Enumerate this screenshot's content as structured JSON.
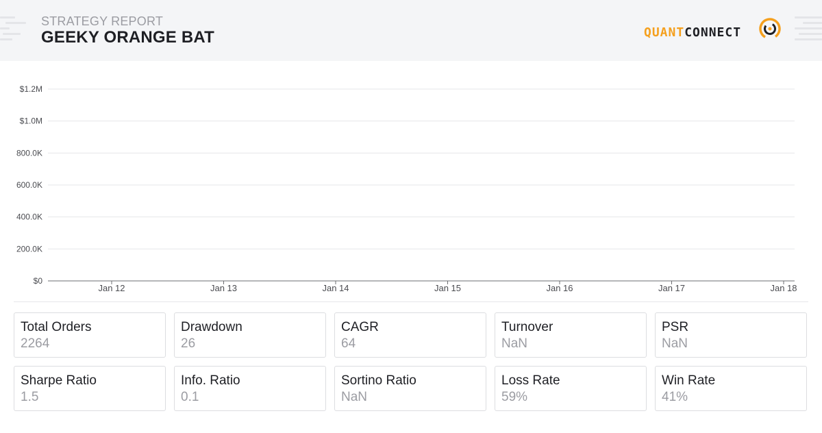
{
  "header": {
    "subtitle": "STRATEGY REPORT",
    "title": "GEEKY ORANGE BAT",
    "logo": {
      "quant": "QUANT",
      "connect": "CONNECT",
      "accent": "#f5a01e"
    }
  },
  "chart_data": {
    "type": "line",
    "title": "",
    "xlabel": "",
    "ylabel": "",
    "x_ticks": [
      "Jan 12",
      "Jan 13",
      "Jan 14",
      "Jan 15",
      "Jan 16",
      "Jan 17",
      "Jan 18"
    ],
    "y_ticks": [
      "$0",
      "200.0K",
      "400.0K",
      "600.0K",
      "800.0K",
      "$1.0M",
      "$1.2M"
    ],
    "ylim": [
      0,
      1200000
    ],
    "series": [],
    "grid": true
  },
  "stats": [
    {
      "label": "Total Orders",
      "value": "2264"
    },
    {
      "label": "Drawdown",
      "value": "26"
    },
    {
      "label": "CAGR",
      "value": "64"
    },
    {
      "label": "Turnover",
      "value": "NaN"
    },
    {
      "label": "PSR",
      "value": "NaN"
    },
    {
      "label": "Sharpe Ratio",
      "value": "1.5"
    },
    {
      "label": "Info. Ratio",
      "value": "0.1"
    },
    {
      "label": "Sortino Ratio",
      "value": "NaN"
    },
    {
      "label": "Loss Rate",
      "value": "59%"
    },
    {
      "label": "Win Rate",
      "value": "41%"
    }
  ]
}
